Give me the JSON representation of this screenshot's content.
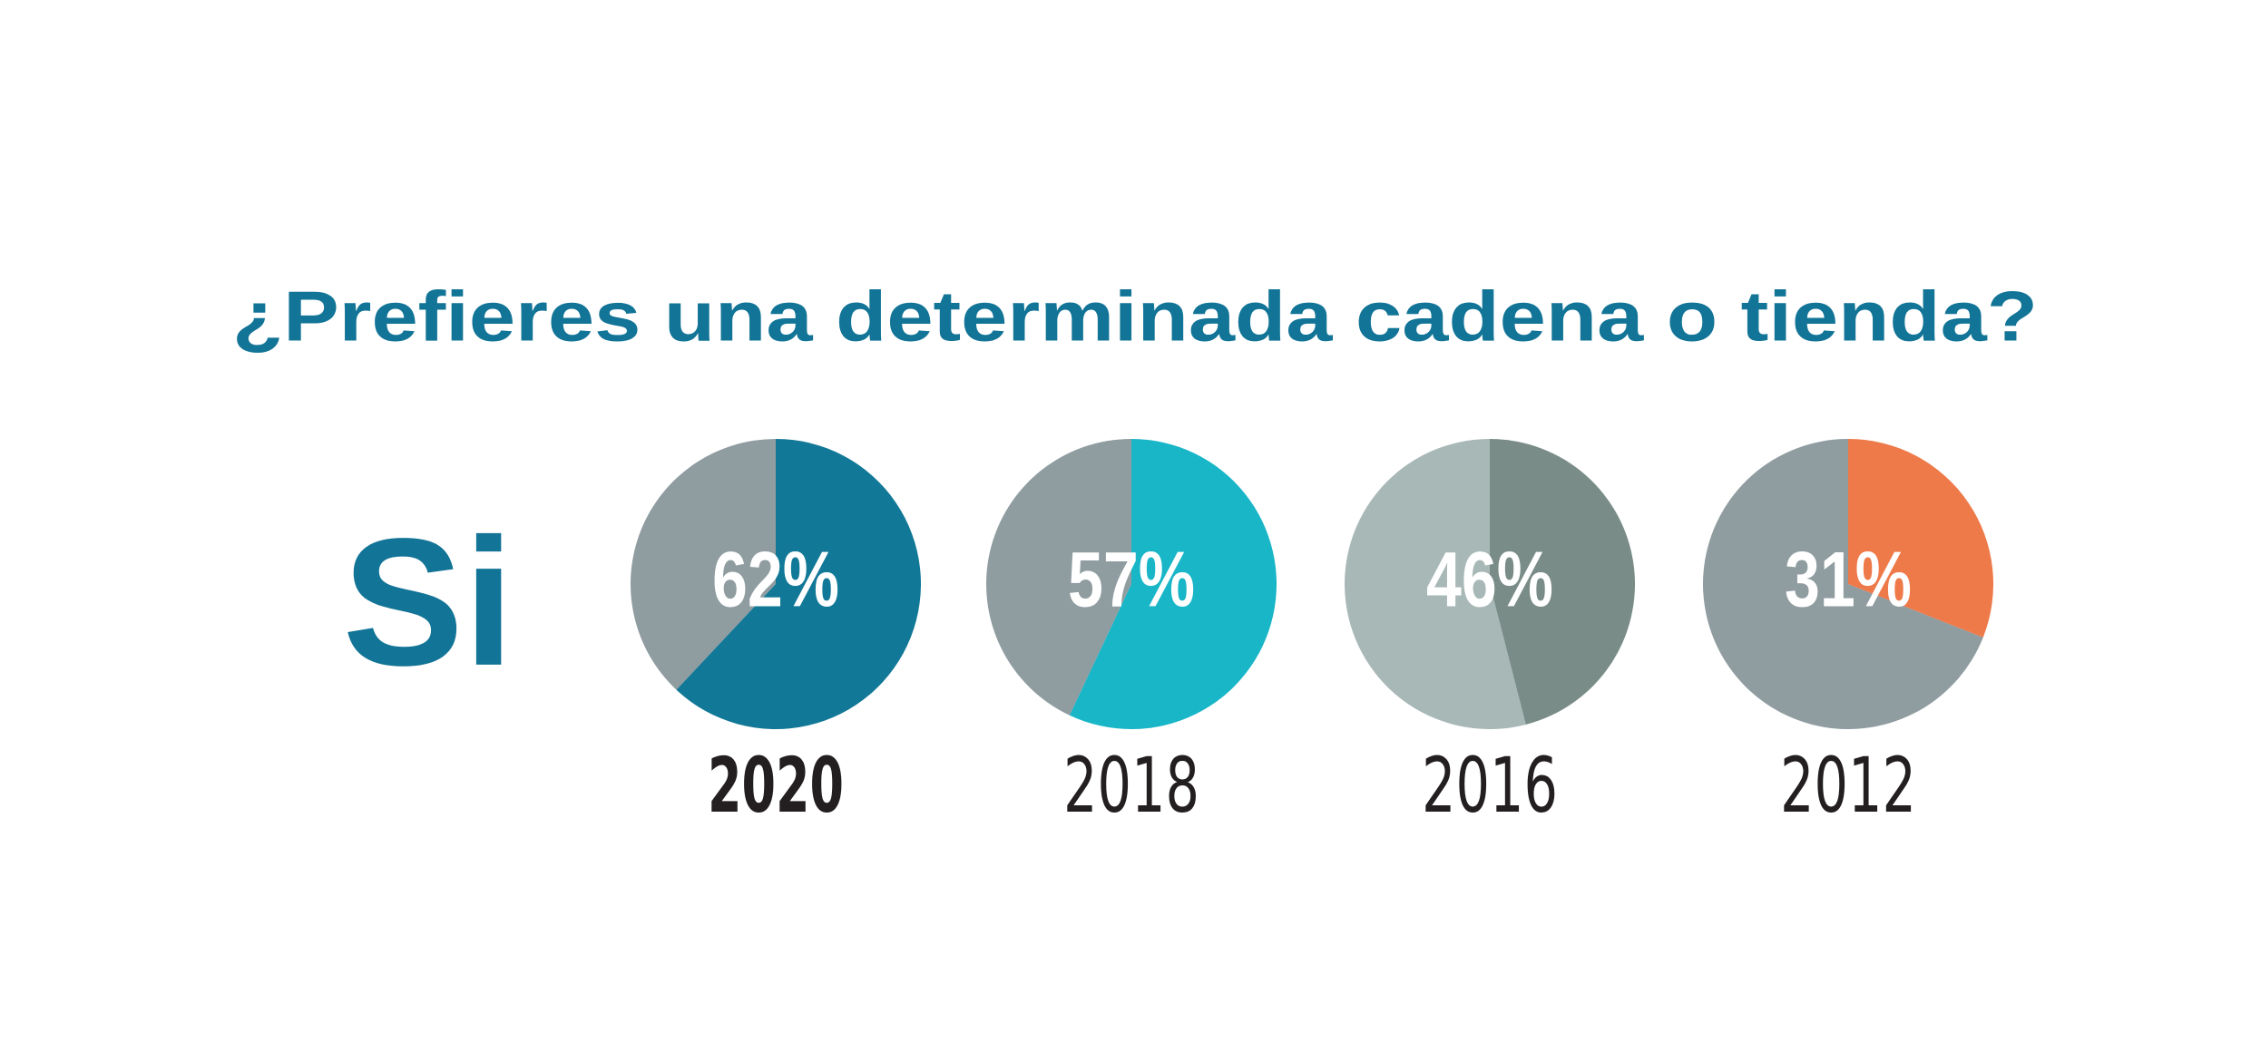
{
  "chart_data": {
    "type": "pie",
    "title": "¿Prefieres una determinada cadena o tienda?",
    "label": "Si",
    "categories": [
      "2020",
      "2018",
      "2016",
      "2012"
    ],
    "values": [
      62,
      57,
      46,
      31
    ],
    "value_labels": [
      "62%",
      "57%",
      "46%",
      "31%"
    ],
    "colors": [
      "#127897",
      "#19b6c8",
      "#7a8c88",
      "#ee7a4a"
    ],
    "rest_colors": [
      "#8f9ca0",
      "#8f9ca0",
      "#a8b8b6",
      "#8f9ca0"
    ]
  }
}
